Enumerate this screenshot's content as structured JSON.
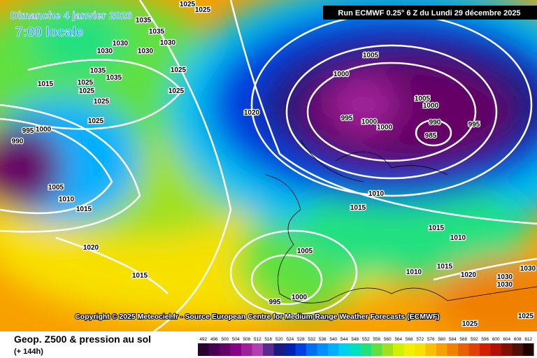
{
  "header": {
    "date": "Dimanche 4 janvier 2026",
    "time": "7:00 locale",
    "run": "Run ECMWF 0.25° 6 Z du Lundi 29 décembre 2025"
  },
  "copyright": "Copyright © 2025 Meteociel.fr - Source European Centre for Medium-Range Weather Forecasts (ECMWF)",
  "footer": {
    "title": "Geop. Z500 & pression au sol",
    "lead": "(+ 144h)"
  },
  "isobar_labels": [
    1025,
    1025,
    1035,
    1035,
    1030,
    1030,
    1030,
    1030,
    1025,
    1035,
    1035,
    1025,
    1025,
    1015,
    1025,
    1025,
    1025,
    1020,
    1005,
    1000,
    1005,
    1000,
    995,
    1000,
    1000,
    990,
    995,
    985,
    990,
    995,
    1000,
    1005,
    1010,
    1015,
    1010,
    1015,
    1015,
    1010,
    1020,
    1005,
    1015,
    1010,
    1015,
    1020,
    1030,
    1030,
    1030,
    995,
    1000,
    1025,
    1025
  ],
  "scale": {
    "labels": [
      492,
      496,
      500,
      504,
      508,
      512,
      516,
      520,
      524,
      528,
      532,
      536,
      540,
      544,
      548,
      552,
      556,
      560,
      564,
      568,
      572,
      576,
      580,
      584,
      588,
      592,
      596,
      600,
      604,
      608,
      612
    ],
    "colors": [
      "#2a0030",
      "#4a0050",
      "#660066",
      "#880088",
      "#a0209a",
      "#b040b0",
      "#5a2a90",
      "#1a1a80",
      "#0020b0",
      "#0040e0",
      "#0070f0",
      "#0090ff",
      "#00b0ff",
      "#00d0f0",
      "#00e0c0",
      "#20e080",
      "#60e040",
      "#a0e020",
      "#d0f000",
      "#f0f000",
      "#f8e000",
      "#f8c000",
      "#f8a000",
      "#f08000",
      "#e86000",
      "#e04000",
      "#d02000",
      "#b01000",
      "#801000",
      "#501008",
      "#200000"
    ]
  }
}
